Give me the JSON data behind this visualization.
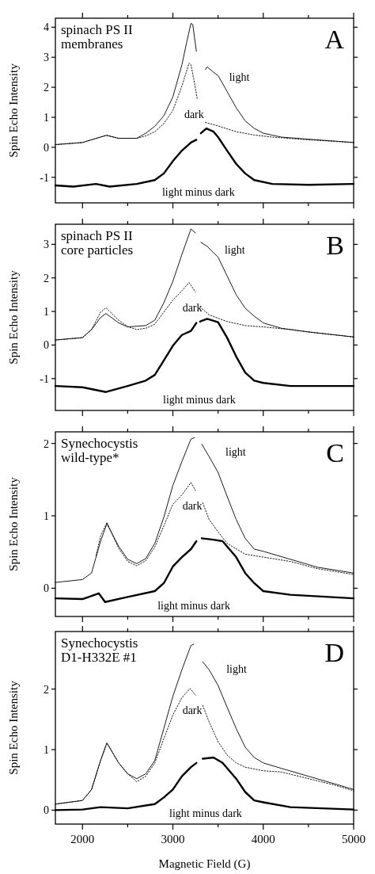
{
  "chart_data": [
    {
      "type": "line",
      "ylabel": "Spin Echo Intensity",
      "annotations": [
        "spinach PS II",
        "membranes",
        "A"
      ],
      "xlim": [
        1700,
        5000
      ],
      "ylim": [
        -1.85,
        4.3
      ],
      "xticks": [
        {
          "value": 2000,
          "label": null
        },
        {
          "value": 2500,
          "label": null
        },
        {
          "value": 3000,
          "label": null
        },
        {
          "value": 3500,
          "label": null
        },
        {
          "value": 4000,
          "label": null
        },
        {
          "value": 4500,
          "label": null
        },
        {
          "value": 5000,
          "label": null
        }
      ],
      "yticks": [
        -1,
        0,
        1,
        2,
        3,
        4
      ],
      "tick_labels": "y",
      "series": [
        {
          "name": "light",
          "color": "#000000",
          "line_style": "solid",
          "x": [
            1700,
            2000,
            2265,
            2400,
            2600,
            2700,
            2800,
            2900,
            3000,
            3100,
            3150,
            3200,
            3220,
            3260,
            3310,
            3360,
            3380,
            3450,
            3500,
            3600,
            3700,
            3800,
            3900,
            4000,
            4200,
            4500,
            5000
          ],
          "values": [
            0.09,
            0.16,
            0.4,
            0.3,
            0.3,
            0.47,
            0.7,
            1.05,
            1.68,
            2.75,
            3.46,
            4.13,
            4.09,
            3.2,
            null,
            2.59,
            2.68,
            2.5,
            2.39,
            1.86,
            1.32,
            0.88,
            0.63,
            0.47,
            0.34,
            0.27,
            0.16
          ]
        },
        {
          "name": "dark",
          "color": "#000000",
          "line_style": "dotted",
          "x": [
            1700,
            2000,
            2265,
            2400,
            2600,
            2700,
            2800,
            2900,
            3000,
            3100,
            3180,
            3200,
            3240,
            3270,
            3310,
            3360,
            3500,
            3700,
            3900,
            4100,
            4500,
            5000
          ],
          "values": [
            0.09,
            0.16,
            0.4,
            0.3,
            0.3,
            0.38,
            0.52,
            0.79,
            1.23,
            2.04,
            2.81,
            2.75,
            2.13,
            1.6,
            null,
            0.83,
            0.71,
            0.52,
            0.41,
            0.34,
            0.25,
            0.16
          ]
        },
        {
          "name": "light minus dark",
          "color": "#000000",
          "line_style": "solid",
          "x": [
            1700,
            1900,
            2150,
            2300,
            2600,
            2800,
            2900,
            3000,
            3100,
            3200,
            3260,
            3290,
            3310,
            3370,
            3450,
            3500,
            3600,
            3700,
            3800,
            3900,
            4100,
            4500,
            5000
          ],
          "values": [
            -1.27,
            -1.31,
            -1.22,
            -1.31,
            -1.22,
            -1.09,
            -0.87,
            -0.46,
            -0.11,
            0.16,
            0.25,
            null,
            0.47,
            0.63,
            0.52,
            0.34,
            -0.11,
            -0.55,
            -0.87,
            -1.09,
            -1.22,
            -1.25,
            -1.22
          ]
        }
      ]
    },
    {
      "type": "line",
      "ylabel": "Spin Echo Intensity",
      "annotations": [
        "spinach PS II",
        "core particles",
        "B"
      ],
      "xlim": [
        1700,
        5000
      ],
      "ylim": [
        -1.95,
        3.6
      ],
      "xticks": [
        {
          "value": 2000,
          "label": null
        },
        {
          "value": 2500,
          "label": null
        },
        {
          "value": 3000,
          "label": null
        },
        {
          "value": 3500,
          "label": null
        },
        {
          "value": 4000,
          "label": null
        },
        {
          "value": 4500,
          "label": null
        },
        {
          "value": 5000,
          "label": null
        }
      ],
      "yticks": [
        -1,
        0,
        1,
        2,
        3
      ],
      "tick_labels": "y",
      "series": [
        {
          "name": "light",
          "color": "#000000",
          "line_style": "solid",
          "x": [
            1700,
            2000,
            2100,
            2200,
            2260,
            2400,
            2500,
            2700,
            2800,
            2900,
            3000,
            3100,
            3200,
            3250,
            3280,
            3310,
            3380,
            3500,
            3600,
            3700,
            3800,
            3900,
            4000,
            4200,
            4500,
            5000
          ],
          "values": [
            0.15,
            0.22,
            0.46,
            0.82,
            0.94,
            0.66,
            0.54,
            0.58,
            0.74,
            1.26,
            1.9,
            2.7,
            3.46,
            3.34,
            null,
            3.06,
            2.94,
            2.62,
            2.06,
            1.5,
            1.1,
            0.86,
            0.66,
            0.5,
            0.39,
            0.24
          ]
        },
        {
          "name": "dark",
          "color": "#000000",
          "line_style": "dotted",
          "x": [
            1700,
            2000,
            2100,
            2200,
            2260,
            2400,
            2500,
            2600,
            2700,
            2800,
            2900,
            3000,
            3100,
            3180,
            3250,
            3280,
            3300,
            3400,
            3600,
            3800,
            4000,
            4300,
            4500,
            5000
          ],
          "values": [
            0.15,
            0.22,
            0.46,
            0.98,
            1.11,
            0.74,
            0.55,
            0.46,
            0.5,
            0.62,
            0.98,
            1.34,
            1.62,
            1.86,
            1.58,
            null,
            1.14,
            0.9,
            0.7,
            0.58,
            0.54,
            0.46,
            0.39,
            0.24
          ]
        },
        {
          "name": "light minus dark",
          "color": "#000000",
          "line_style": "solid",
          "x": [
            1700,
            2000,
            2260,
            2500,
            2700,
            2800,
            2900,
            3000,
            3100,
            3200,
            3260,
            3280,
            3300,
            3380,
            3500,
            3600,
            3700,
            3800,
            3900,
            4000,
            4300,
            5000
          ],
          "values": [
            -1.22,
            -1.26,
            -1.4,
            -1.22,
            -1.06,
            -0.89,
            -0.46,
            -0.02,
            0.3,
            0.42,
            0.66,
            null,
            0.7,
            0.78,
            0.68,
            0.22,
            -0.34,
            -0.82,
            -1.06,
            -1.13,
            -1.22,
            -1.22
          ]
        }
      ]
    },
    {
      "type": "line",
      "ylabel": "Spin Echo Intensity",
      "annotations": [
        "Synechocystis",
        "wild-type*",
        "C"
      ],
      "xlim": [
        1700,
        5000
      ],
      "ylim": [
        -0.39,
        2.16
      ],
      "xticks": [
        {
          "value": 2000,
          "label": null
        },
        {
          "value": 2500,
          "label": null
        },
        {
          "value": 3000,
          "label": null
        },
        {
          "value": 3500,
          "label": null
        },
        {
          "value": 4000,
          "label": null
        },
        {
          "value": 4500,
          "label": null
        },
        {
          "value": 5000,
          "label": null
        }
      ],
      "yticks": [
        0,
        1,
        2
      ],
      "tick_labels": "y",
      "series": [
        {
          "name": "light",
          "color": "#000000",
          "line_style": "solid",
          "x": [
            1700,
            2000,
            2100,
            2200,
            2270,
            2400,
            2500,
            2600,
            2700,
            2800,
            2900,
            3000,
            3100,
            3200,
            3240,
            3280,
            3320,
            3400,
            3500,
            3600,
            3700,
            3800,
            3900,
            4000,
            4300,
            4600,
            5000
          ],
          "values": [
            0.08,
            0.12,
            0.21,
            0.65,
            0.89,
            0.58,
            0.4,
            0.34,
            0.41,
            0.62,
            0.98,
            1.42,
            1.75,
            2.06,
            2.08,
            null,
            1.99,
            1.82,
            1.6,
            1.27,
            0.95,
            0.69,
            0.54,
            0.51,
            0.4,
            0.29,
            0.21
          ]
        },
        {
          "name": "dark",
          "color": "#000000",
          "line_style": "dotted",
          "x": [
            2150,
            2200,
            2270,
            2400,
            2500,
            2600,
            2700,
            2800,
            2900,
            3000,
            3100,
            3200,
            3250,
            3290,
            3330,
            3400,
            3500,
            3600,
            3800,
            4000,
            4300,
            4600,
            5000
          ],
          "values": [
            0.45,
            0.72,
            0.91,
            0.55,
            0.37,
            0.31,
            0.38,
            0.57,
            0.86,
            1.16,
            1.29,
            1.46,
            1.35,
            null,
            1.18,
            0.95,
            0.78,
            0.62,
            0.47,
            0.43,
            0.37,
            0.27,
            0.19
          ]
        },
        {
          "name": "light minus dark",
          "color": "#000000",
          "line_style": "solid",
          "x": [
            1700,
            2000,
            2180,
            2250,
            2500,
            2800,
            2900,
            3000,
            3100,
            3200,
            3260,
            3290,
            3320,
            3450,
            3550,
            3700,
            3800,
            3900,
            4000,
            4300,
            5000
          ],
          "values": [
            -0.14,
            -0.15,
            -0.07,
            -0.19,
            -0.12,
            -0.04,
            0.07,
            0.3,
            0.43,
            0.54,
            0.65,
            null,
            0.69,
            0.67,
            0.65,
            0.43,
            0.21,
            0.07,
            -0.04,
            -0.09,
            -0.14
          ]
        }
      ]
    },
    {
      "type": "line",
      "ylabel": "Spin Echo Intensity",
      "xlabel": "Magnetic Field (G)",
      "annotations": [
        "Synechocystis",
        "D1-H332E #1",
        "D"
      ],
      "xlim": [
        1700,
        5000
      ],
      "ylim": [
        -0.23,
        2.95
      ],
      "xticks": [
        2000,
        {
          "value": 2500,
          "label": null
        },
        3000,
        {
          "value": 3500,
          "label": null
        },
        4000,
        {
          "value": 4500,
          "label": null
        },
        5000
      ],
      "yticks": [
        0,
        1,
        2
      ],
      "series": [
        {
          "name": "light",
          "color": "#000000",
          "line_style": "solid",
          "x": [
            1700,
            2000,
            2100,
            2200,
            2270,
            2400,
            2500,
            2600,
            2700,
            2800,
            2900,
            3000,
            3100,
            3200,
            3230,
            3280,
            3330,
            3400,
            3500,
            3600,
            3700,
            3800,
            3900,
            4000,
            4200,
            4500,
            4800,
            5000
          ],
          "values": [
            0.1,
            0.16,
            0.34,
            0.82,
            1.11,
            0.78,
            0.6,
            0.52,
            0.6,
            0.82,
            1.35,
            1.88,
            2.32,
            2.72,
            2.74,
            null,
            2.45,
            2.32,
            2.06,
            1.7,
            1.35,
            1.04,
            0.87,
            0.78,
            0.69,
            0.56,
            0.43,
            0.34
          ]
        },
        {
          "name": "dark",
          "color": "#000000",
          "line_style": "dotted",
          "x": [
            1700,
            2000,
            2100,
            2200,
            2270,
            2400,
            2500,
            2600,
            2700,
            2800,
            2900,
            3000,
            3100,
            3190,
            3250,
            3290,
            3330,
            3400,
            3500,
            3600,
            3700,
            3800,
            4000,
            4200,
            4500,
            4800,
            5000
          ],
          "values": [
            0.1,
            0.16,
            0.34,
            0.82,
            1.11,
            0.78,
            0.6,
            0.47,
            0.56,
            0.78,
            1.18,
            1.57,
            1.86,
            2.01,
            1.9,
            null,
            1.73,
            1.46,
            1.13,
            0.91,
            0.78,
            0.71,
            0.65,
            0.63,
            0.52,
            0.41,
            0.32
          ]
        },
        {
          "name": "light minus dark",
          "color": "#000000",
          "line_style": "solid",
          "x": [
            1700,
            2000,
            2200,
            2500,
            2800,
            2900,
            3000,
            3100,
            3200,
            3260,
            3300,
            3330,
            3450,
            3550,
            3700,
            3800,
            3900,
            4000,
            4300,
            5000
          ],
          "values": [
            0.0,
            0.01,
            0.05,
            0.03,
            0.1,
            0.21,
            0.34,
            0.56,
            0.71,
            0.78,
            null,
            0.85,
            0.87,
            0.78,
            0.52,
            0.3,
            0.16,
            0.13,
            0.05,
            0.01
          ]
        }
      ]
    }
  ]
}
